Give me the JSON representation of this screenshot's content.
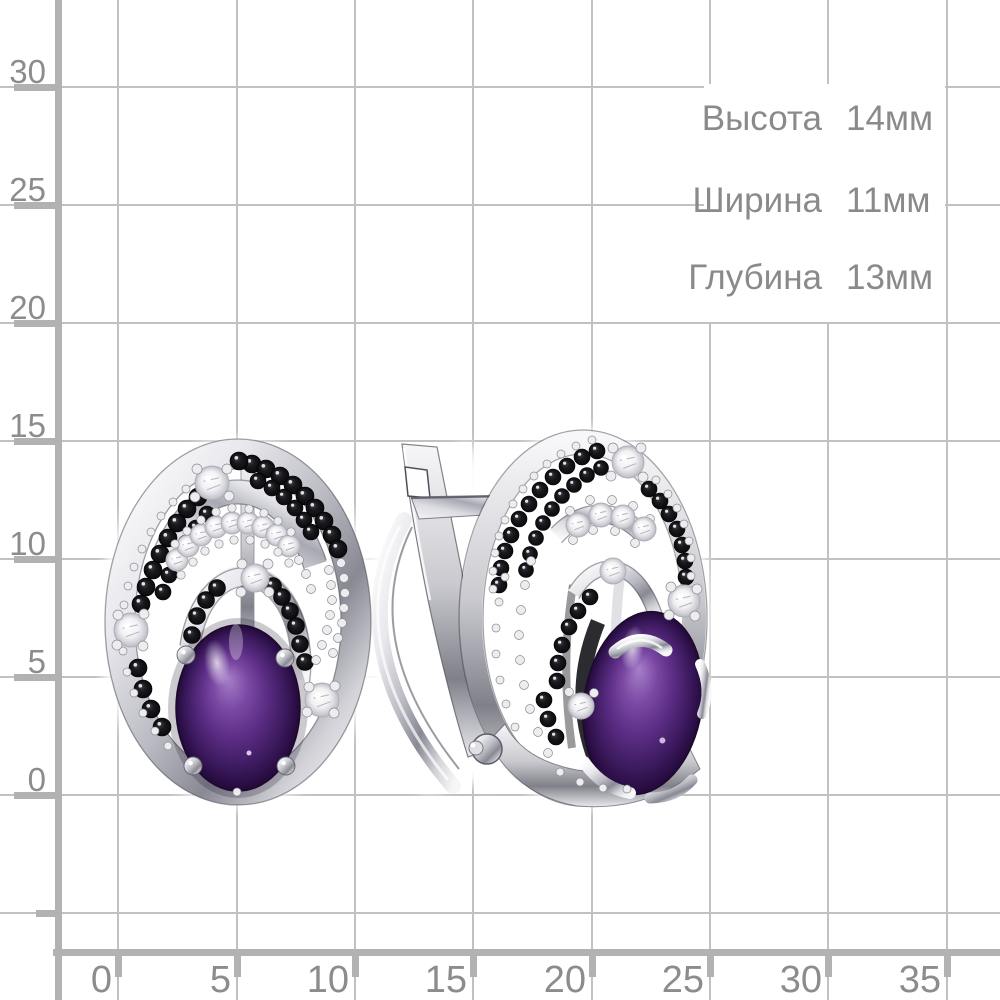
{
  "ruler": {
    "y_axis_labels": [
      "30",
      "25",
      "20",
      "15",
      "10",
      "5",
      "0"
    ],
    "x_axis_labels": [
      "0",
      "5",
      "10",
      "15",
      "20",
      "25",
      "30",
      "35"
    ],
    "grid_line_color": "#c1c1c1",
    "frame_color": "#b2b2b2",
    "label_color": "#8c8c8c"
  },
  "dimensions": {
    "rows": [
      {
        "label": "Высота",
        "value": "14мм"
      },
      {
        "label": "Ширина",
        "value": "11мм"
      },
      {
        "label": "Глубина",
        "value": "13мм"
      }
    ],
    "text_color": "#8a8a8a"
  },
  "photo": {
    "subject": "pair-of-silver-earrings-with-purple-oval-cabochon-black-and-white-stones",
    "colors": {
      "amethyst_light": "#a77fc9",
      "amethyst": "#5a2c83",
      "amethyst_dark": "#23093a",
      "silver_light": "#f6f6f8",
      "silver": "#c9c9cf",
      "silver_dark": "#80808a",
      "black_stone": "#0a0a0c",
      "cz_white": "#f2f2f5"
    }
  }
}
